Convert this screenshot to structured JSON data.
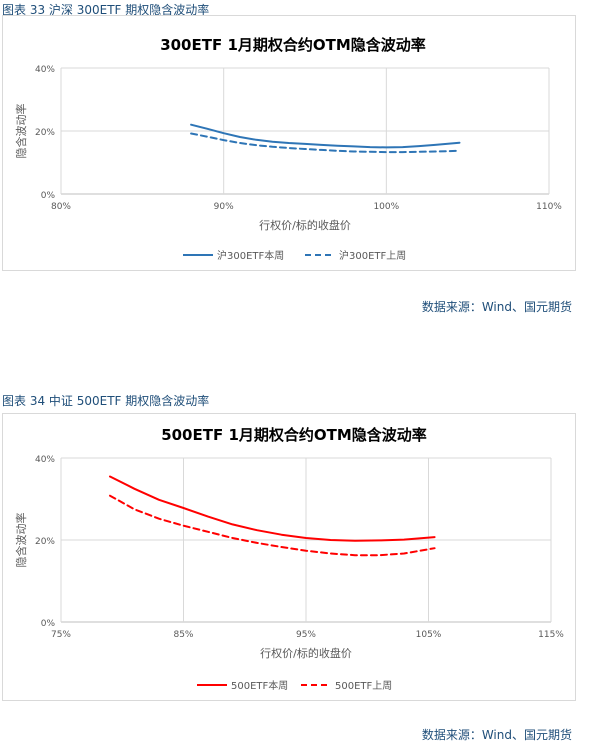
{
  "figures": [
    {
      "caption": "图表 33 沪深 300ETF 期权隐含波动率",
      "source": "数据来源：Wind、国元期货"
    },
    {
      "caption": "图表 34 中证 500ETF 期权隐含波动率",
      "source": "数据来源：Wind、国元期货"
    }
  ],
  "chart_data": [
    {
      "type": "line",
      "title": "300ETF 1月期权合约OTM隐含波动率",
      "xlabel": "行权价/标的收盘价",
      "ylabel": "隐含波动率",
      "xlim": [
        0.8,
        1.1
      ],
      "ylim": [
        0,
        0.4
      ],
      "x_ticks": [
        0.8,
        0.9,
        1.0,
        1.1
      ],
      "x_tick_labels": [
        "80%",
        "90%",
        "100%",
        "110%"
      ],
      "y_ticks": [
        0,
        0.2,
        0.4
      ],
      "y_tick_labels": [
        "0%",
        "20%",
        "40%"
      ],
      "grid": true,
      "legend_position": "bottom",
      "series": [
        {
          "name": "沪300ETF本周",
          "color": "#2e75b6",
          "style": "solid",
          "x": [
            0.88,
            0.89,
            0.9,
            0.91,
            0.92,
            0.93,
            0.94,
            0.95,
            0.96,
            0.97,
            0.98,
            0.99,
            1.0,
            1.01,
            1.02,
            1.03,
            1.045
          ],
          "y": [
            0.22,
            0.207,
            0.193,
            0.181,
            0.172,
            0.166,
            0.162,
            0.159,
            0.156,
            0.153,
            0.151,
            0.149,
            0.148,
            0.149,
            0.152,
            0.156,
            0.163
          ]
        },
        {
          "name": "沪300ETF上周",
          "color": "#2e75b6",
          "style": "dashed",
          "x": [
            0.88,
            0.89,
            0.9,
            0.91,
            0.92,
            0.93,
            0.94,
            0.95,
            0.96,
            0.97,
            0.98,
            0.99,
            1.0,
            1.01,
            1.02,
            1.03,
            1.045
          ],
          "y": [
            0.192,
            0.182,
            0.171,
            0.162,
            0.155,
            0.15,
            0.146,
            0.143,
            0.14,
            0.137,
            0.135,
            0.134,
            0.133,
            0.133,
            0.134,
            0.135,
            0.137
          ]
        }
      ]
    },
    {
      "type": "line",
      "title": "500ETF 1月期权合约OTM隐含波动率",
      "xlabel": "行权价/标的收盘价",
      "ylabel": "隐含波动率",
      "xlim": [
        0.75,
        1.15
      ],
      "ylim": [
        0,
        0.4
      ],
      "x_ticks": [
        0.75,
        0.85,
        0.95,
        1.05,
        1.15
      ],
      "x_tick_labels": [
        "75%",
        "85%",
        "95%",
        "105%",
        "115%"
      ],
      "y_ticks": [
        0,
        0.2,
        0.4
      ],
      "y_tick_labels": [
        "0%",
        "20%",
        "40%"
      ],
      "grid": true,
      "legend_position": "bottom",
      "series": [
        {
          "name": "500ETF本周",
          "color": "#ff0000",
          "style": "solid",
          "x": [
            0.79,
            0.81,
            0.83,
            0.85,
            0.87,
            0.89,
            0.91,
            0.93,
            0.95,
            0.97,
            0.99,
            1.01,
            1.03,
            1.055
          ],
          "y": [
            0.355,
            0.325,
            0.298,
            0.278,
            0.257,
            0.238,
            0.224,
            0.213,
            0.205,
            0.2,
            0.198,
            0.199,
            0.201,
            0.207
          ]
        },
        {
          "name": "500ETF上周",
          "color": "#ff0000",
          "style": "dashed",
          "x": [
            0.79,
            0.81,
            0.83,
            0.85,
            0.87,
            0.89,
            0.91,
            0.93,
            0.95,
            0.97,
            0.99,
            1.01,
            1.03,
            1.055
          ],
          "y": [
            0.308,
            0.275,
            0.252,
            0.235,
            0.22,
            0.205,
            0.193,
            0.183,
            0.174,
            0.167,
            0.163,
            0.163,
            0.167,
            0.18
          ]
        }
      ]
    }
  ]
}
